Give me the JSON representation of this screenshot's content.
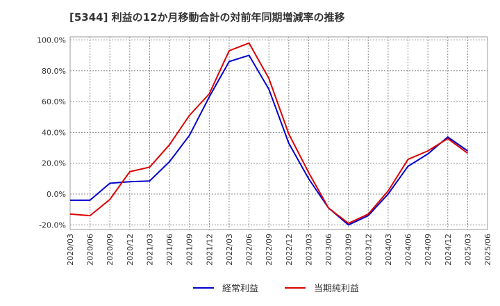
{
  "chart_data": {
    "type": "line",
    "title": "[5344]  利益の12か月移動合計の対前年同期増減率の推移",
    "xlabel": "",
    "ylabel": "",
    "x": [
      "2020/03",
      "2020/06",
      "2020/09",
      "2020/12",
      "2021/03",
      "2021/06",
      "2021/09",
      "2021/12",
      "2022/03",
      "2022/06",
      "2022/09",
      "2022/12",
      "2023/03",
      "2023/06",
      "2023/09",
      "2023/12",
      "2024/03",
      "2024/06",
      "2024/09",
      "2024/12",
      "2025/03",
      "2025/06"
    ],
    "y_ticks": [
      "100.0%",
      "80.0%",
      "60.0%",
      "40.0%",
      "20.0%",
      "0.0%",
      "-20.0%"
    ],
    "ylim": [
      -23,
      102
    ],
    "grid": true,
    "legend_position": "bottom",
    "series": [
      {
        "name": "経常利益",
        "color": "#0000cc",
        "values": [
          -4,
          -4,
          7,
          8,
          8.5,
          21,
          38,
          63,
          86,
          90,
          68,
          33,
          10,
          -9,
          -20,
          -14,
          0,
          18,
          26,
          37,
          28,
          null
        ]
      },
      {
        "name": "当期純利益",
        "color": "#dd0000",
        "values": [
          -13,
          -14,
          -3.5,
          14.5,
          17.5,
          32,
          51,
          65,
          93,
          98,
          75,
          39,
          14,
          -9,
          -19,
          -13,
          2,
          22.5,
          28,
          36,
          26.5,
          null
        ]
      }
    ]
  }
}
